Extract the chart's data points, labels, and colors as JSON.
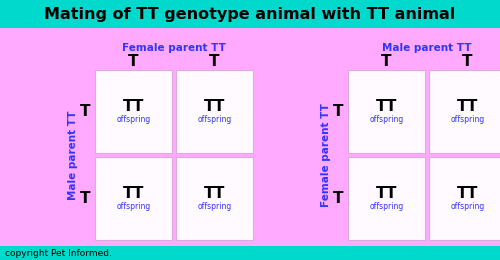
{
  "title": "Mating of TT genotype animal with TT animal",
  "title_fontsize": 11.5,
  "title_color": "#000000",
  "title_bg_color": "#00d9cc",
  "bg_color": "#ffaaff",
  "cell_bg_color": "#fffaff",
  "cell_edge_color": "#ddaadd",
  "blue_color": "#3333ff",
  "black_color": "#000000",
  "copyright": "copyright Pet Informed.",
  "copyright_fontsize": 6.5,
  "left_table": {
    "header": "Female parent TT",
    "side_label": "Male parent TT",
    "col_alleles": [
      "T",
      "T"
    ],
    "row_alleles": [
      "T",
      "T"
    ],
    "cells": [
      [
        "TT",
        "TT"
      ],
      [
        "TT",
        "TT"
      ]
    ]
  },
  "right_table": {
    "header": "Male parent TT",
    "side_label": "Female parent TT",
    "col_alleles": [
      "T",
      "T"
    ],
    "row_alleles": [
      "T",
      "T"
    ],
    "cells": [
      [
        "TT",
        "TT"
      ],
      [
        "TT",
        "TT"
      ]
    ]
  },
  "offspring_label": "offspring"
}
